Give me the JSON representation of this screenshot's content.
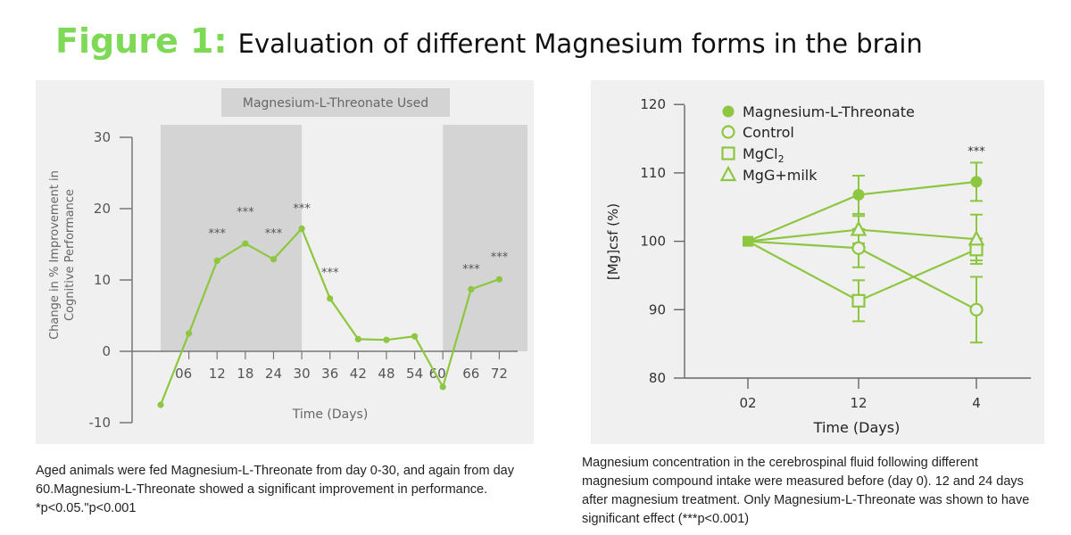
{
  "header": {
    "figure_label": "Figure 1:",
    "title": "Evaluation of different Magnesium forms in the brain"
  },
  "colors": {
    "accent_green": "#7ed957",
    "line_green": "#8dc63f",
    "panel_bg": "#f0f0f0",
    "shade_gray": "#d4d4d4"
  },
  "chart_data": [
    {
      "type": "line",
      "legend": "Magnesium-L-Threonate Used",
      "xlabel": "Time (Days)",
      "ylabel_lines": [
        "Change in % Improvement in",
        "Cognitive Performance"
      ],
      "x_ticks": [
        "06",
        "12",
        "18",
        "24",
        "30",
        "36",
        "42",
        "48",
        "54",
        "60",
        "66",
        "72"
      ],
      "y_ticks": [
        "30",
        "20",
        "10",
        "0",
        "-10"
      ],
      "ylim": [
        -10,
        30
      ],
      "xlim": [
        -6,
        78
      ],
      "shaded_ranges": [
        [
          0,
          30
        ],
        [
          60,
          78
        ]
      ],
      "series": [
        {
          "name": "Cognitive performance",
          "x": [
            0,
            6,
            12,
            18,
            24,
            30,
            36,
            42,
            48,
            54,
            60,
            66,
            72
          ],
          "y": [
            -7.5,
            2.5,
            12.7,
            15.1,
            12.9,
            17.2,
            7.4,
            1.7,
            1.6,
            2.1,
            -5.0,
            8.7,
            10.1
          ]
        }
      ],
      "annotations": [
        {
          "x": 12,
          "text": "***",
          "y": 16
        },
        {
          "x": 18,
          "text": "***",
          "y": 19
        },
        {
          "x": 24,
          "text": "***",
          "y": 16
        },
        {
          "x": 30,
          "text": "***",
          "y": 19.5
        },
        {
          "x": 36,
          "text": "***",
          "y": 10.5
        },
        {
          "x": 66,
          "text": "***",
          "y": 11
        },
        {
          "x": 72,
          "text": "***",
          "y": 12.7
        }
      ]
    },
    {
      "type": "line",
      "xlabel": "Time (Days)",
      "ylabel": "[Mg]csf (%)",
      "categories": [
        "02",
        "12",
        "4"
      ],
      "y_ticks": [
        "120",
        "110",
        "100",
        "90",
        "80"
      ],
      "ylim": [
        80,
        120
      ],
      "series": [
        {
          "name": "Magnesium-L-Threonate",
          "marker": "filled-circle",
          "values": [
            100,
            106.8,
            108.7
          ],
          "errors": [
            0,
            2.8,
            2.8
          ]
        },
        {
          "name": "Control",
          "marker": "open-circle",
          "values": [
            100,
            99,
            90
          ],
          "errors": [
            0,
            2.8,
            4.8
          ]
        },
        {
          "name": "MgCl",
          "subscript": "2",
          "marker": "open-square",
          "values": [
            100,
            91.3,
            98.8
          ],
          "errors": [
            0,
            3.0,
            1.6
          ]
        },
        {
          "name": "MgG+milk",
          "marker": "open-triangle",
          "values": [
            100,
            101.7,
            100.3
          ],
          "errors": [
            0,
            2.0,
            3.6
          ]
        }
      ],
      "annotations": [
        {
          "category": "4",
          "text": "***",
          "y": 112.6
        }
      ]
    }
  ],
  "captions": {
    "left": "Aged animals were fed Magnesium-L-Threonate from day 0-30, and again from day 60.Magnesium-L-Threonate showed a significant improvement in performance. *p<0.05.\"p<0.001",
    "right": "Magnesium concentration in the cerebrospinal fluid following different magnesium compound intake were measured before (day 0). 12 and 24 days after magnesium treatment. Only Magnesium-L-Threonate was shown to have significant effect (***p<0.001)"
  }
}
